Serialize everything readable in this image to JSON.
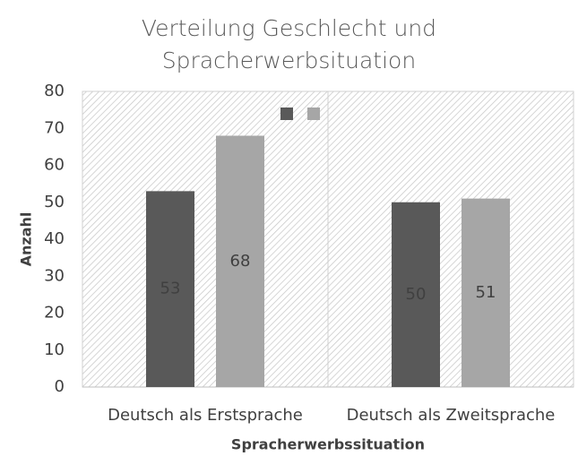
{
  "chart_data": {
    "type": "bar",
    "title": "Verteilung Geschlecht und Spracherwerbsituation",
    "x_label": "Spracherwerbssituation",
    "y_label": "Anzahl",
    "categories": [
      "Deutsch als Erstsprache",
      "Deutsch als Zweitsprache"
    ],
    "series": [
      {
        "color": "#595959",
        "values": [
          53,
          50
        ]
      },
      {
        "color": "#a6a6a6",
        "values": [
          68,
          51
        ]
      }
    ],
    "ylim": [
      0,
      80
    ],
    "yticks": [
      0,
      10,
      20,
      30,
      40,
      50,
      60,
      70,
      80
    ],
    "grid": false,
    "legend": "top-right"
  }
}
